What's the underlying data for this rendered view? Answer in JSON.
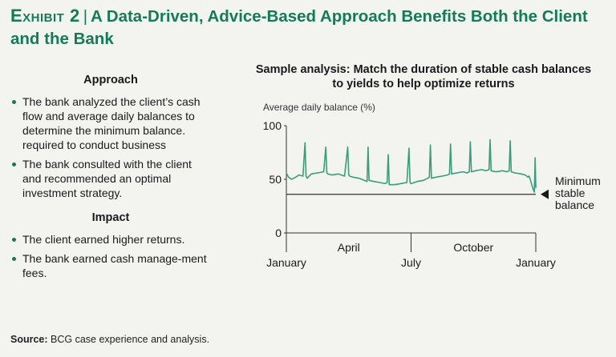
{
  "header": {
    "exhibit": "Exhibit 2",
    "separator": "|",
    "title": "A Data-Driven, Advice-Based Approach Benefits Both the Client and the Bank"
  },
  "approach": {
    "heading": "Approach",
    "bullets": [
      "The bank analyzed the client’s cash flow and average daily balances to determine the minimum balance. required to conduct business",
      "The bank consulted with the client and recommended an optimal investment strategy."
    ]
  },
  "impact": {
    "heading": "Impact",
    "bullets": [
      "The client earned higher returns.",
      "The bank earned cash manage-ment fees."
    ]
  },
  "source": {
    "label": "Source:",
    "text": "BCG case experience and analysis."
  },
  "colors": {
    "accent": "#147b58",
    "series": "#3a9d7c",
    "text": "#1a1a1a"
  },
  "chart_data": {
    "type": "line",
    "title": "Sample analysis: Match the duration of stable cash balances to yields to help optimize returns",
    "ylabel": "Average daily balance (%)",
    "ylim": [
      0,
      100
    ],
    "yticks": [
      0,
      50,
      100
    ],
    "x_range": [
      0,
      12
    ],
    "x_ticks": [
      {
        "label": "January",
        "pos": 0,
        "row": "lower"
      },
      {
        "label": "April",
        "pos": 3,
        "row": "upper"
      },
      {
        "label": "July",
        "pos": 6,
        "row": "lower"
      },
      {
        "label": "October",
        "pos": 9,
        "row": "upper"
      },
      {
        "label": "January",
        "pos": 12,
        "row": "lower"
      }
    ],
    "minimum_balance": {
      "value": 36,
      "label": [
        "Minimum",
        "stable",
        "balance"
      ]
    },
    "series": [
      {
        "x": [
          0,
          0.1,
          0.25,
          0.45,
          0.6,
          0.8,
          0.9,
          0.95,
          1.0,
          1.2,
          1.5,
          1.8,
          1.9,
          1.95,
          2.0,
          2.2,
          2.5,
          2.8,
          2.95,
          3.0,
          3.05,
          3.2,
          3.5,
          3.75,
          3.88,
          3.93,
          3.98,
          4.2,
          4.5,
          4.75,
          4.85,
          4.9,
          4.95,
          5.2,
          5.5,
          5.8,
          5.9,
          5.95,
          6.0,
          6.3,
          6.6,
          6.8,
          6.88,
          6.93,
          6.98,
          7.2,
          7.5,
          7.75,
          7.85,
          7.9,
          7.95,
          8.2,
          8.5,
          8.7,
          8.8,
          8.85,
          8.9,
          9.1,
          9.4,
          9.6,
          9.75,
          9.8,
          9.85,
          10.1,
          10.4,
          10.6,
          10.72,
          10.77,
          10.82,
          11.0,
          11.3,
          11.5,
          11.62,
          11.67,
          11.72,
          11.85,
          11.93,
          11.97,
          12.0
        ],
        "y": [
          56,
          52,
          50,
          52,
          54,
          53,
          84,
          53,
          51,
          55,
          56,
          57,
          80,
          56,
          55,
          54,
          55,
          53,
          80,
          54,
          53,
          52,
          51,
          49,
          48,
          80,
          49,
          48,
          47,
          46,
          47,
          73,
          45,
          45,
          46,
          47,
          79,
          47,
          46,
          48,
          49,
          51,
          52,
          82,
          51,
          52,
          53,
          54,
          55,
          83,
          55,
          56,
          57,
          56,
          57,
          85,
          57,
          58,
          59,
          58,
          59,
          87,
          58,
          57,
          58,
          57,
          58,
          86,
          57,
          56,
          55,
          54,
          52,
          53,
          51,
          42,
          38,
          70,
          42
        ]
      }
    ]
  }
}
